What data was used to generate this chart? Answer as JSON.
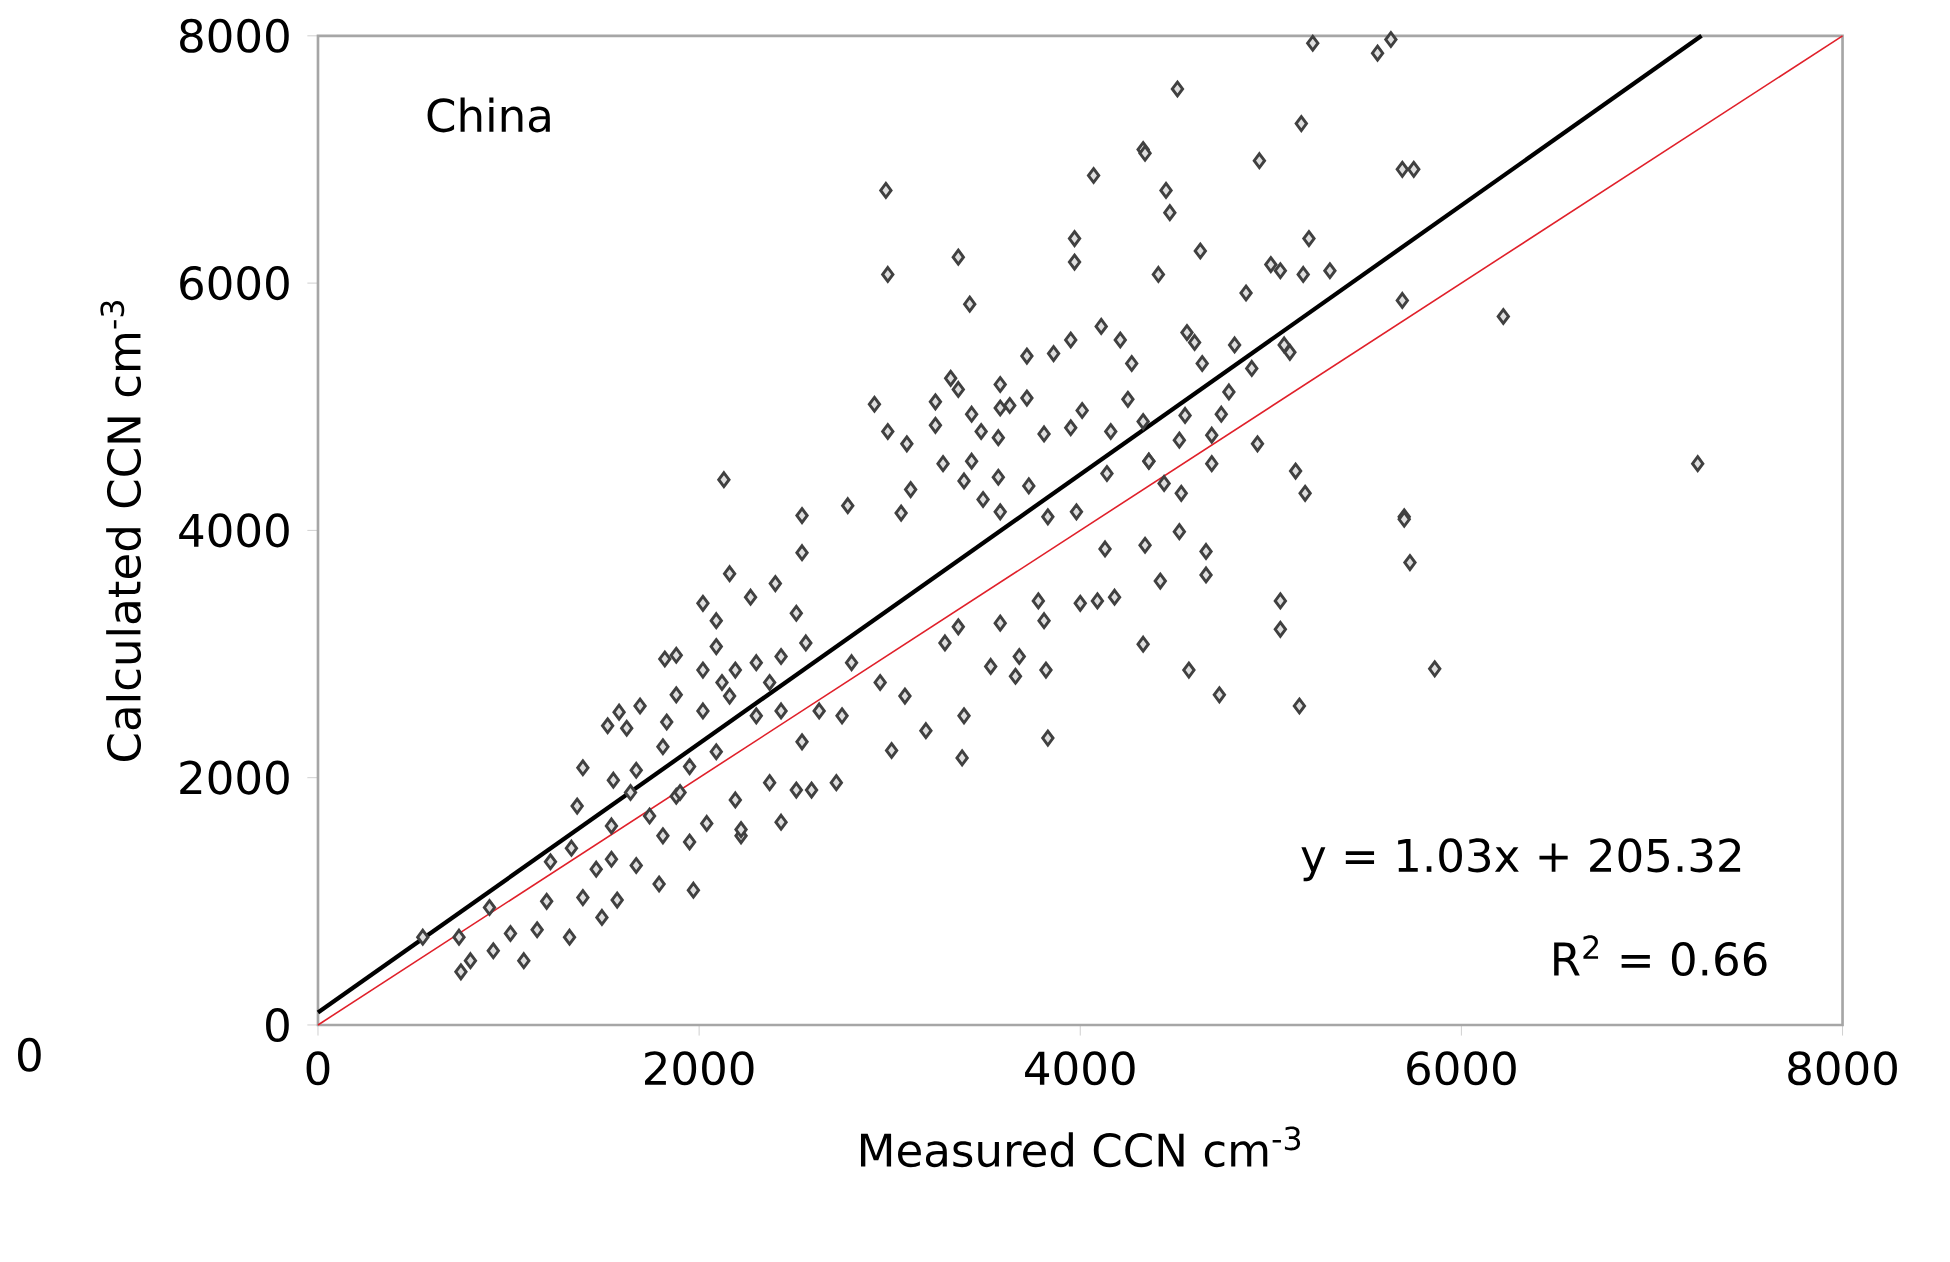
{
  "chart_data": {
    "type": "scatter",
    "xlabel": "Measured CCN cm$^{-3}$",
    "ylabel": "Calculated CCN cm$^{-3}$",
    "xlim": [
      0,
      8000
    ],
    "ylim": [
      0,
      8000
    ],
    "xticks": [
      0,
      2000,
      4000,
      6000,
      8000
    ],
    "yticks": [
      0,
      2000,
      4000,
      6000,
      8000
    ],
    "grid": false,
    "annotations": [
      "China",
      "y = 1.03x + 205.32",
      "R$^{2}$ = 0.66",
      "0"
    ],
    "series": [
      {
        "marker": "diamond",
        "color": "#404040",
        "x": [
          2980,
          2990,
          3360,
          3420,
          4070,
          4330,
          5220,
          5560,
          5630,
          4510,
          5160,
          4340,
          4940,
          5690,
          5750,
          4450,
          4470,
          4630,
          5200,
          4410,
          5000,
          5050,
          5170,
          5310,
          4870,
          5690,
          6220,
          4560,
          4600,
          4810,
          5070,
          5100,
          4640,
          4900,
          4780,
          4740,
          4550,
          4520,
          4690,
          4930,
          4360,
          4690,
          5130,
          5180,
          7240,
          5700,
          4530,
          4440,
          4340,
          4520,
          4660,
          4660,
          4420,
          4130,
          4000,
          4090,
          4180,
          4330,
          4570,
          4730,
          5050,
          5050,
          5150,
          5700,
          5730,
          5860,
          3830,
          3820,
          3380,
          3010,
          2720,
          2590,
          3660,
          3530,
          3390,
          3190,
          3680,
          3810,
          3780,
          3580,
          3360,
          3290,
          3080,
          2950,
          2800,
          2750,
          2630,
          550,
          750,
          800,
          740,
          900,
          920,
          1010,
          1080,
          1150,
          1320,
          1490,
          1200,
          1390,
          1570,
          1790,
          1970,
          1670,
          1540,
          1460,
          1330,
          1220,
          1810,
          1950,
          2040,
          2220,
          1360,
          1540,
          1640,
          1740,
          1880,
          1670,
          1390,
          1550,
          1810,
          1950,
          2090,
          1900,
          2190,
          2370,
          2510,
          2430,
          2220,
          1520,
          1620,
          1580,
          1690,
          1830,
          1880,
          2020,
          2160,
          2300,
          2430,
          2540,
          1820,
          1880,
          2020,
          2090,
          2190,
          2300,
          2430,
          2560,
          2020,
          2090,
          2160,
          2270,
          2400,
          2540,
          2510,
          2120,
          2370,
          3970,
          3970,
          2920,
          2990,
          3090,
          3240,
          3320,
          3360,
          3580,
          3720,
          3860,
          3950,
          4110,
          4210,
          4270,
          4250,
          4010,
          3950,
          3810,
          3720,
          3630,
          3580,
          3430,
          3240,
          3480,
          3570,
          3280,
          3430,
          3390,
          3570,
          3730,
          3490,
          3580,
          3110,
          3060,
          3830,
          3980,
          4140,
          4360,
          4160,
          4330,
          2130,
          2540,
          2780
        ],
        "values": [
          6750,
          6070,
          6210,
          5830,
          6870,
          7080,
          7940,
          7860,
          7970,
          7570,
          7290,
          7050,
          6990,
          6920,
          6920,
          6750,
          6570,
          6260,
          6360,
          6070,
          6150,
          6100,
          6070,
          6100,
          5920,
          5860,
          5730,
          5600,
          5520,
          5500,
          5500,
          5440,
          5350,
          5310,
          5120,
          4940,
          4930,
          4730,
          4770,
          4700,
          4560,
          4540,
          4480,
          4300,
          4540,
          4110,
          4300,
          4380,
          3880,
          3990,
          3830,
          3640,
          3590,
          3850,
          3410,
          3430,
          3460,
          3080,
          2870,
          2670,
          3430,
          3200,
          2580,
          4090,
          3740,
          2880,
          2320,
          2870,
          2160,
          2220,
          1960,
          1900,
          2820,
          2900,
          2500,
          2380,
          2980,
          3270,
          3430,
          3250,
          3220,
          3090,
          2660,
          2770,
          2930,
          2500,
          2540,
          710,
          430,
          520,
          710,
          950,
          600,
          740,
          520,
          770,
          710,
          870,
          1000,
          1030,
          1010,
          1140,
          1090,
          1290,
          1340,
          1260,
          1430,
          1320,
          1530,
          1480,
          1630,
          1530,
          1770,
          1610,
          1880,
          1690,
          1850,
          2060,
          2080,
          1980,
          2250,
          2090,
          2210,
          1880,
          1820,
          1960,
          1900,
          1640,
          1580,
          2420,
          2400,
          2530,
          2580,
          2450,
          2670,
          2540,
          2660,
          2500,
          2540,
          2290,
          2960,
          2990,
          2870,
          3060,
          2870,
          2930,
          2980,
          3090,
          3410,
          3270,
          3650,
          3460,
          3570,
          3820,
          3330,
          2770,
          2770,
          6360,
          6170,
          5020,
          4800,
          4700,
          5040,
          5230,
          5140,
          5180,
          5410,
          5430,
          5540,
          5650,
          5540,
          5350,
          5060,
          4970,
          4830,
          4780,
          5070,
          5010,
          4990,
          4940,
          4850,
          4800,
          4750,
          4540,
          4560,
          4400,
          4430,
          4360,
          4250,
          4150,
          4330,
          4140,
          4110,
          4150,
          4460,
          4560,
          4800,
          4880,
          4410,
          4120,
          4200
        ]
      },
      {
        "type": "line",
        "marker": "none",
        "color": "#000000",
        "x": [
          0,
          7260
        ],
        "values": [
          100,
          8000
        ]
      },
      {
        "type": "line",
        "marker": "none",
        "color": "#e0202a",
        "x": [
          0,
          8000
        ],
        "values": [
          0,
          8000
        ]
      }
    ]
  }
}
